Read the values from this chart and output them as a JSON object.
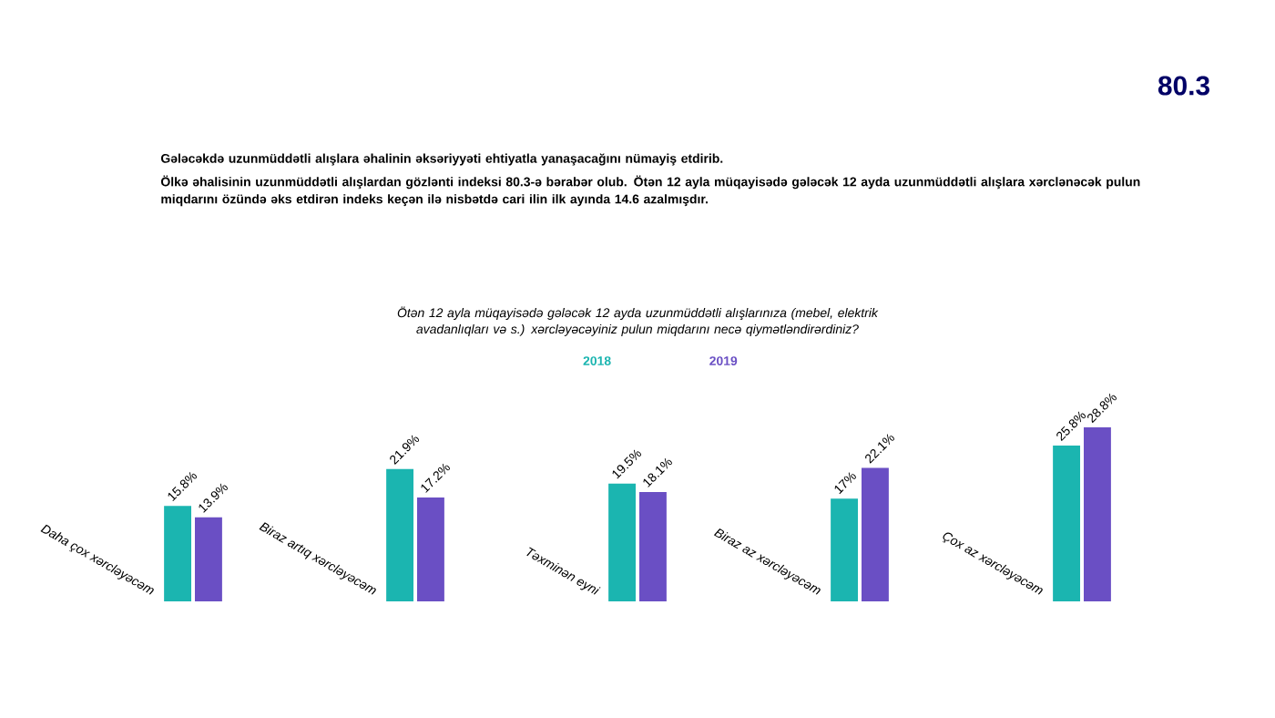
{
  "chart_data": {
    "type": "bar",
    "title": "*Ötən 12 ayla müqayisədə gələcək 12 ayda uzunmüddətli alışlarınıza (mebel, elektrik avadanlıqları və s.) xərcləyəcəyiniz pulun miqdarını necə qiymətləndirərdiniz?*",
    "annotations": [
      "**Gələcəkdə uzunmüddətli alışlara əhalinin əksəriyyəti ehtiyatla yanaşacağını nümayiş etdirib.**",
      "Ölkə əhalisinin uzunmüddətli alışlardan gözlənti indeksi 80.3-ə bərabər olub. Ötən 12 ayla müqayisədə gələcək 12 ayda uzunmüddətli alışlara xərclənəcək pulun miqdarını özündə əks etdirən indeks keçən ilə nisbətdə cari ilin ilk ayında 14.6 azalmışdır.",
      "80.3"
    ],
    "categories": [
      "Daha çox xərcləyəcəm",
      "Biraz artıq xərcləyəcəm",
      "Təxminən eyni",
      "Biraz az xərcləyəcəm",
      "Çox az xərcləyəcəm"
    ],
    "series": [
      {
        "name": "2018",
        "color": "#1bb5b0",
        "values": [
          15.8,
          21.9,
          19.5,
          17,
          25.8
        ],
        "value_labels": [
          "15.8%",
          "21.9%",
          "19.5%",
          "17%",
          "25.8%"
        ]
      },
      {
        "name": "2019",
        "color": "#6a4fc4",
        "values": [
          13.9,
          17.2,
          18.1,
          22.1,
          28.8
        ],
        "value_labels": [
          "13.9%",
          "17.2%",
          "18.1%",
          "22.1%",
          "28.8%"
        ]
      }
    ],
    "legend": "top"
  }
}
